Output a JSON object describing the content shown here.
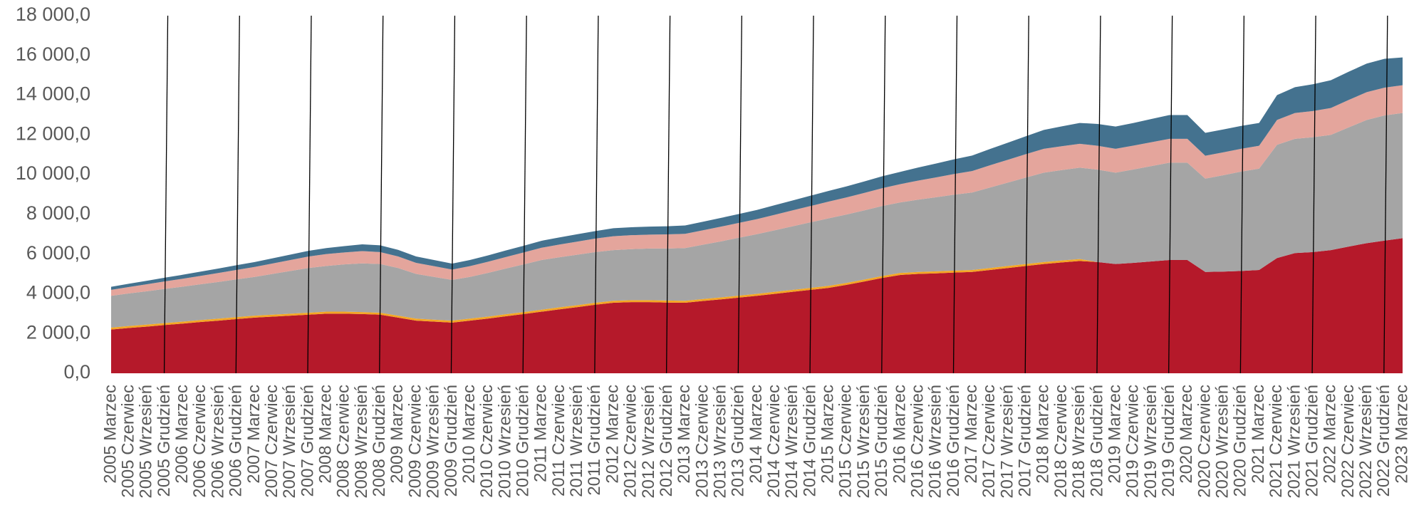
{
  "chart_data": {
    "type": "stacked_area",
    "categories": [
      "2005 Marzec",
      "2005 Czerwiec",
      "2005 Wrzesień",
      "2005 Grudzień",
      "2006 Marzec",
      "2006 Czerwiec",
      "2006 Wrzesień",
      "2006 Grudzień",
      "2007 Marzec",
      "2007 Czerwiec",
      "2007 Wrzesień",
      "2007 Grudzień",
      "2008 Marzec",
      "2008 Czerwiec",
      "2008 Wrzesień",
      "2008 Grudzień",
      "2009 Marzec",
      "2009 Czerwiec",
      "2009 Wrzesień",
      "2009 Grudzień",
      "2010 Marzec",
      "2010 Czerwiec",
      "2010 Wrzesień",
      "2010 Grudzień",
      "2011 Marzec",
      "2011 Czerwiec",
      "2011 Wrzesień",
      "2011 Grudzień",
      "2012 Marzec",
      "2012 Czerwiec",
      "2012 Wrzesień",
      "2012 Grudzień",
      "2013 Marzec",
      "2013 Czerwiec",
      "2013 Wrzesień",
      "2013 Grudzień",
      "2014 Marzec",
      "2014 Czerwiec",
      "2014 Wrzesień",
      "2014 Grudzień",
      "2015 Marzec",
      "2015 Czerwiec",
      "2015 Wrzesień",
      "2015 Grudzień",
      "2016 Marzec",
      "2016 Czerwiec",
      "2016 Wrzesień",
      "2016 Grudzień",
      "2017 Marzec",
      "2017 Czerwiec",
      "2017 Wrzesień",
      "2017 Grudzień",
      "2018 Marzec",
      "2018 Czerwiec",
      "2018 Wrzesień",
      "2018 Grudzień",
      "2019 Marzec",
      "2019 Czerwiec",
      "2019 Wrzesień",
      "2019 Grudzień",
      "2020 Marzec",
      "2020 Czerwiec",
      "2020 Wrzesień",
      "2020 Grudzień",
      "2021 Marzec",
      "2021 Czerwiec",
      "2021 Wrzesień",
      "2021 Grudzień",
      "2022 Marzec",
      "2022 Czerwiec",
      "2022 Wrzesień",
      "2022 Grudzień",
      "2023 Marzec"
    ],
    "series": [
      {
        "color": "#b5192a",
        "values": [
          2200,
          2280,
          2350,
          2430,
          2500,
          2580,
          2650,
          2730,
          2800,
          2850,
          2900,
          2950,
          3000,
          3000,
          2980,
          2950,
          2800,
          2650,
          2600,
          2550,
          2650,
          2750,
          2870,
          2980,
          3100,
          3220,
          3330,
          3450,
          3550,
          3580,
          3580,
          3560,
          3550,
          3640,
          3720,
          3810,
          3900,
          4000,
          4100,
          4200,
          4300,
          4450,
          4620,
          4800,
          4950,
          5000,
          5030,
          5070,
          5100,
          5200,
          5300,
          5400,
          5500,
          5580,
          5650,
          5600,
          5500,
          5560,
          5630,
          5700,
          5700,
          5100,
          5120,
          5150,
          5200,
          5800,
          6050,
          6100,
          6200,
          6380,
          6550,
          6680,
          6800
        ]
      },
      {
        "color": "#f5a623",
        "values": [
          100,
          100,
          100,
          100,
          100,
          100,
          100,
          100,
          100,
          100,
          100,
          100,
          100,
          100,
          100,
          100,
          100,
          100,
          100,
          100,
          100,
          100,
          100,
          100,
          100,
          100,
          100,
          100,
          100,
          100,
          100,
          100,
          100,
          100,
          100,
          100,
          100,
          100,
          100,
          100,
          100,
          100,
          100,
          100,
          100,
          100,
          100,
          100,
          100,
          100,
          100,
          100,
          100,
          100,
          100,
          0,
          0,
          0,
          0,
          0,
          0,
          0,
          0,
          0,
          0,
          0,
          0,
          0,
          0,
          0,
          0,
          0,
          0
        ]
      },
      {
        "color": "#a5a5a5",
        "values": [
          1600,
          1640,
          1680,
          1720,
          1760,
          1800,
          1850,
          1900,
          1950,
          2050,
          2150,
          2250,
          2300,
          2380,
          2450,
          2450,
          2400,
          2250,
          2150,
          2050,
          2100,
          2200,
          2300,
          2400,
          2500,
          2520,
          2540,
          2550,
          2550,
          2570,
          2600,
          2620,
          2650,
          2730,
          2820,
          2910,
          3000,
          3100,
          3200,
          3300,
          3400,
          3440,
          3480,
          3520,
          3550,
          3640,
          3730,
          3820,
          3900,
          4050,
          4200,
          4350,
          4500,
          4550,
          4600,
          4650,
          4600,
          4700,
          4800,
          4900,
          4900,
          4700,
          4850,
          5000,
          5100,
          5700,
          5750,
          5780,
          5800,
          6000,
          6200,
          6300,
          6300
        ]
      },
      {
        "color": "#e4a59c",
        "values": [
          300,
          325,
          350,
          375,
          400,
          425,
          450,
          475,
          500,
          525,
          550,
          575,
          600,
          600,
          620,
          600,
          580,
          560,
          540,
          520,
          540,
          560,
          580,
          600,
          620,
          640,
          660,
          680,
          700,
          700,
          700,
          710,
          720,
          730,
          740,
          750,
          760,
          780,
          800,
          820,
          840,
          860,
          880,
          900,
          920,
          960,
          1000,
          1040,
          1080,
          1120,
          1150,
          1180,
          1200,
          1200,
          1200,
          1200,
          1200,
          1200,
          1200,
          1200,
          1200,
          1150,
          1150,
          1150,
          1150,
          1250,
          1300,
          1320,
          1350,
          1380,
          1400,
          1400,
          1400
        ]
      },
      {
        "color": "#44728f",
        "values": [
          150,
          162,
          175,
          188,
          200,
          212,
          225,
          238,
          250,
          262,
          275,
          288,
          300,
          320,
          340,
          340,
          330,
          320,
          310,
          300,
          310,
          320,
          330,
          340,
          350,
          360,
          370,
          380,
          400,
          400,
          400,
          410,
          420,
          430,
          440,
          450,
          460,
          480,
          500,
          520,
          540,
          560,
          580,
          600,
          620,
          660,
          700,
          740,
          780,
          820,
          860,
          900,
          950,
          1000,
          1050,
          1100,
          1120,
          1140,
          1170,
          1200,
          1200,
          1150,
          1150,
          1150,
          1150,
          1250,
          1300,
          1350,
          1400,
          1420,
          1440,
          1450,
          1400
        ]
      }
    ],
    "ylim": [
      0,
      18000
    ],
    "yticks": [
      {
        "value": 0,
        "label": "0,0"
      },
      {
        "value": 2000,
        "label": "2 000,0"
      },
      {
        "value": 4000,
        "label": "4 000,0"
      },
      {
        "value": 6000,
        "label": "6 000,0"
      },
      {
        "value": 8000,
        "label": "8 000,0"
      },
      {
        "value": 10000,
        "label": "10 000,0"
      },
      {
        "value": 12000,
        "label": "12 000,0"
      },
      {
        "value": 14000,
        "label": "14 000,0"
      },
      {
        "value": 16000,
        "label": "16 000,0"
      },
      {
        "value": 18000,
        "label": "18 000,0"
      }
    ]
  }
}
